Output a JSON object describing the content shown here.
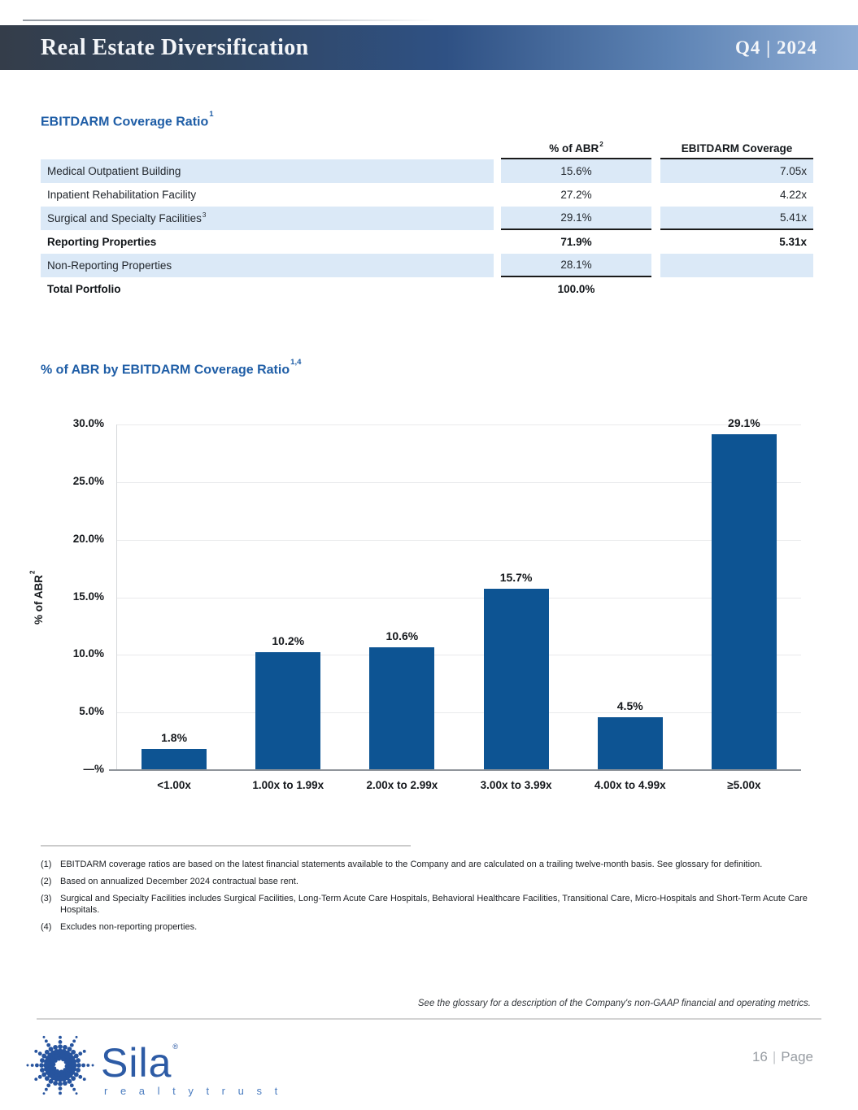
{
  "header": {
    "title": "Real Estate Diversification",
    "period": "Q4 | 2024"
  },
  "table": {
    "title": "EBITDARM Coverage Ratio",
    "title_sup": "1",
    "columns": [
      {
        "label": "% of ABR",
        "sup": "2"
      },
      {
        "label": "EBITDARM Coverage",
        "sup": ""
      }
    ],
    "rows": [
      {
        "label": "Medical Outpatient Building",
        "label_sup": "",
        "abr": "15.6%",
        "coverage": "7.05x"
      },
      {
        "label": "Inpatient Rehabilitation Facility",
        "label_sup": "",
        "abr": "27.2%",
        "coverage": "4.22x"
      },
      {
        "label": "Surgical and Specialty Facilities",
        "label_sup": "3",
        "abr": "29.1%",
        "coverage": "5.41x"
      },
      {
        "label": "Reporting Properties",
        "label_sup": "",
        "abr": "71.9%",
        "coverage": "5.31x"
      },
      {
        "label": "Non-Reporting Properties",
        "label_sup": "",
        "abr": "28.1%",
        "coverage": ""
      },
      {
        "label": "Total Portfolio",
        "label_sup": "",
        "abr": "100.0%",
        "coverage": ""
      }
    ]
  },
  "chart_data": {
    "type": "bar",
    "title": "% of ABR by EBITDARM Coverage Ratio",
    "title_sup": "1,4",
    "categories": [
      "<1.00x",
      "1.00x to 1.99x",
      "2.00x to 2.99x",
      "3.00x to 3.99x",
      "4.00x to 4.99x",
      "≥5.00x"
    ],
    "values": [
      1.8,
      10.2,
      10.6,
      15.7,
      4.5,
      29.1
    ],
    "value_labels": [
      "1.8%",
      "10.2%",
      "10.6%",
      "15.7%",
      "4.5%",
      "29.1%"
    ],
    "xlabel": "",
    "ylabel": "% of ABR",
    "ylabel_sup": "2",
    "yticks": [
      "30.0%",
      "25.0%",
      "20.0%",
      "15.0%",
      "10.0%",
      "5.0%",
      "—%"
    ],
    "ylim": [
      0,
      30
    ],
    "grid": true,
    "legend": false,
    "bar_color": "#0d5493"
  },
  "footnotes": [
    {
      "num": "(1)",
      "text": "EBITDARM coverage ratios are based on the latest financial statements available to the Company and are calculated on a trailing twelve-month basis. See glossary for definition."
    },
    {
      "num": "(2)",
      "text": "Based on annualized December 2024 contractual base rent."
    },
    {
      "num": "(3)",
      "text": "Surgical and Specialty Facilities includes Surgical Facilities, Long-Term Acute Care Hospitals, Behavioral Healthcare Facilities, Transitional Care, Micro-Hospitals and Short-Term Acute Care Hospitals."
    },
    {
      "num": "(4)",
      "text": "Excludes non-reporting properties."
    }
  ],
  "glossary_note": "See the glossary for a description of the Company's non-GAAP financial and operating metrics.",
  "footer": {
    "page_number": "16",
    "page_word": "Page",
    "brand_name": "Sila",
    "brand_tagline": "r e a l t y   t r u s t",
    "registered_mark": "®"
  },
  "colors": {
    "accent_blue": "#1e5da6",
    "bar_blue": "#0d5493",
    "row_shade": "#dbe9f7",
    "header_gradient_left": "#343d4a",
    "header_gradient_right": "#8fadd5"
  }
}
